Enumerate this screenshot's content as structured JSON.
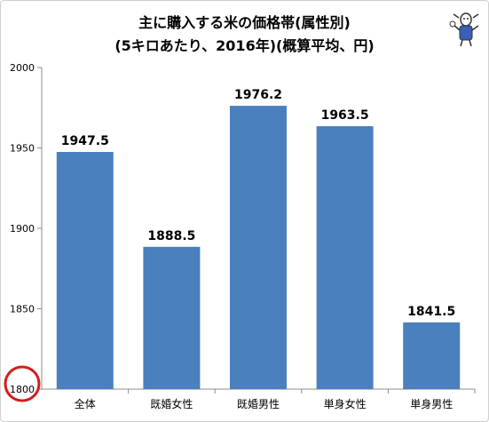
{
  "chart_data": {
    "type": "bar",
    "title_line1": "主に購入する米の価格帯(属性別)",
    "title_line2": "(5キロあたり、2016年)(概算平均、円)",
    "categories": [
      "全体",
      "既婚女性",
      "既婚男性",
      "単身女性",
      "単身男性"
    ],
    "values": [
      1947.5,
      1888.5,
      1976.2,
      1963.5,
      1841.5
    ],
    "value_labels": [
      "1947.5",
      "1888.5",
      "1976.2",
      "1963.5",
      "1841.5"
    ],
    "ylim": [
      1800,
      2000
    ],
    "yticks": [
      "1800",
      "1850",
      "1900",
      "1950",
      "2000"
    ],
    "grid": false,
    "colors": {
      "bar": "#4a80bd",
      "axis": "#8c8c8c",
      "highlight_circle": "#d21e1e"
    },
    "annotation": {
      "type": "circle",
      "target": "y-axis-min-tick",
      "meaning": "axis does not start at zero"
    },
    "mascot": {
      "icon": "mascot-character-icon"
    }
  }
}
